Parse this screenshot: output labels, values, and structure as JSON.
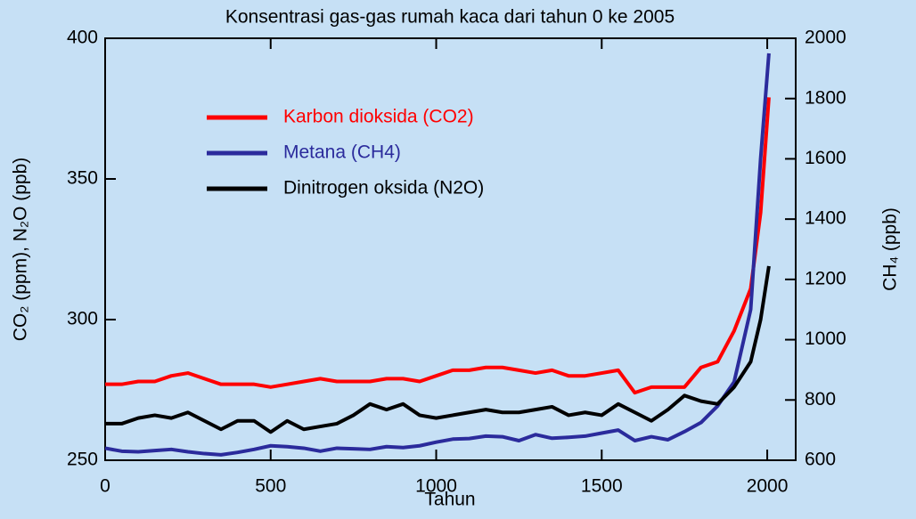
{
  "chart_data": {
    "type": "line",
    "title": "Konsentrasi gas-gas rumah kaca dari tahun 0 ke 2005",
    "x_label": "Tahun",
    "y_label": "CO₂ (ppm), N₂O (ppb)",
    "y2_label": "CH₄ (ppb)",
    "x": [
      0,
      50,
      100,
      150,
      200,
      250,
      300,
      350,
      400,
      450,
      500,
      550,
      600,
      650,
      700,
      750,
      800,
      850,
      900,
      950,
      1000,
      1050,
      1100,
      1150,
      1200,
      1250,
      1300,
      1350,
      1400,
      1450,
      1500,
      1550,
      1600,
      1650,
      1700,
      1750,
      1800,
      1850,
      1900,
      1950,
      1980,
      2005
    ],
    "series": [
      {
        "name": "Karbon dioksida (CO2)",
        "color": "#ff0000",
        "values": [
          277,
          277,
          278,
          278,
          280,
          281,
          279,
          277,
          277,
          277,
          276,
          277,
          278,
          279,
          278,
          278,
          278,
          279,
          279,
          278,
          280,
          282,
          282,
          283,
          283,
          282,
          281,
          282,
          280,
          280,
          281,
          282,
          274,
          276,
          276,
          276,
          283,
          285,
          296,
          311,
          338,
          379
        ]
      },
      {
        "name": "Metana (CH4)",
        "color": "#2b2b9c",
        "axis": "y2",
        "values": [
          640,
          630,
          628,
          632,
          636,
          628,
          622,
          618,
          626,
          636,
          648,
          645,
          640,
          630,
          640,
          638,
          636,
          645,
          642,
          648,
          660,
          670,
          672,
          680,
          678,
          665,
          685,
          673,
          676,
          680,
          690,
          700,
          665,
          678,
          668,
          695,
          725,
          780,
          860,
          1100,
          1600,
          1950
        ]
      },
      {
        "name": "Dinitrogen oksida (N2O)",
        "color": "#000000",
        "values": [
          263,
          263,
          265,
          266,
          265,
          267,
          264,
          261,
          264,
          264,
          260,
          264,
          261,
          262,
          263,
          266,
          270,
          268,
          270,
          266,
          265,
          266,
          267,
          268,
          267,
          267,
          268,
          269,
          266,
          267,
          266,
          270,
          267,
          264,
          268,
          273,
          271,
          270,
          276,
          285,
          300,
          319
        ]
      }
    ],
    "xlim": [
      0,
      2086
    ],
    "xticks": [
      0,
      500,
      1000,
      1500,
      2000
    ],
    "ylim": [
      250,
      400
    ],
    "yticks": [
      250,
      300,
      350,
      400
    ],
    "y2lim": [
      600,
      2000
    ],
    "y2ticks": [
      600,
      800,
      1000,
      1200,
      1400,
      1600,
      1800,
      2000
    ],
    "background": "#c6e0f5"
  }
}
